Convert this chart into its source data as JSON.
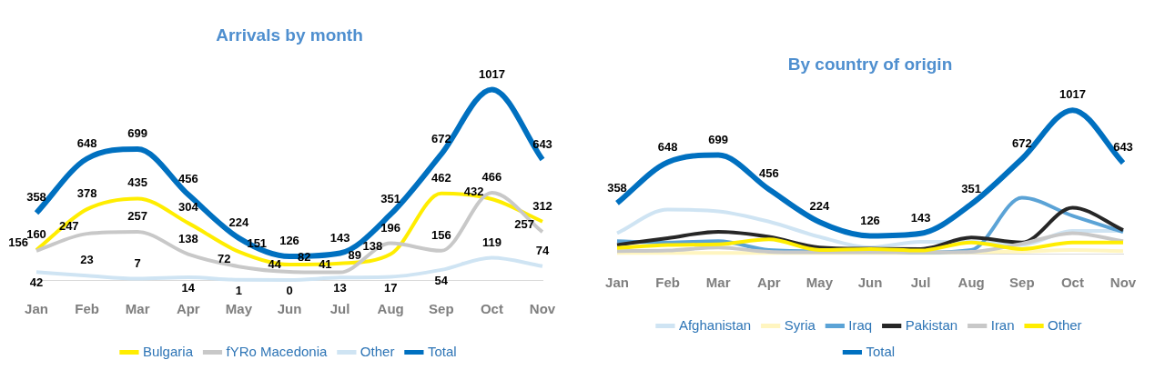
{
  "chart_data": [
    {
      "type": "line",
      "title": "Arrivals by month",
      "categories": [
        "Jan",
        "Feb",
        "Mar",
        "Apr",
        "May",
        "Jun",
        "Jul",
        "Aug",
        "Sep",
        "Oct",
        "Nov"
      ],
      "series": [
        {
          "name": "Bulgaria",
          "color": "#ffed00",
          "values": [
            160,
            378,
            435,
            304,
            151,
            82,
            89,
            138,
            462,
            432,
            312
          ]
        },
        {
          "name": "fYRo Macedonia",
          "color": "#c8c8c8",
          "values": [
            156,
            247,
            257,
            138,
            72,
            44,
            41,
            196,
            156,
            466,
            257
          ]
        },
        {
          "name": "Other",
          "color": "#cfe4f3",
          "values": [
            42,
            23,
            7,
            14,
            1,
            0,
            13,
            17,
            54,
            119,
            74
          ]
        },
        {
          "name": "Total",
          "color": "#0070c0",
          "values": [
            358,
            648,
            699,
            456,
            224,
            126,
            143,
            351,
            672,
            1017,
            643
          ]
        }
      ],
      "data_labels": true,
      "legend": "bottom",
      "grid": false,
      "marker": "none"
    },
    {
      "type": "line",
      "title": "By country of origin",
      "categories": [
        "Jan",
        "Feb",
        "Mar",
        "Apr",
        "May",
        "Jun",
        "Jul",
        "Aug",
        "Sep",
        "Oct",
        "Nov"
      ],
      "series": [
        {
          "name": "Afghanistan",
          "color": "#cfe4f3",
          "values": [
            145,
            312,
            300,
            227,
            119,
            44,
            84,
            84,
            62,
            161,
            161
          ]
        },
        {
          "name": "Syria",
          "color": "#fff5c0",
          "values": [
            5,
            5,
            5,
            5,
            5,
            5,
            5,
            10,
            15,
            25,
            18
          ]
        },
        {
          "name": "Iraq",
          "color": "#5ba3d6",
          "values": [
            88,
            79,
            88,
            26,
            18,
            18,
            9,
            26,
            396,
            268,
            154
          ]
        },
        {
          "name": "Pakistan",
          "color": "#262626",
          "values": [
            62,
            110,
            154,
            119,
            44,
            35,
            33,
            114,
            79,
            326,
            167
          ]
        },
        {
          "name": "Iran",
          "color": "#c8c8c8",
          "values": [
            18,
            22,
            44,
            13,
            9,
            9,
            9,
            13,
            70,
            145,
            88
          ]
        },
        {
          "name": "Other",
          "color": "#ffed00",
          "values": [
            40,
            62,
            66,
            101,
            26,
            33,
            22,
            79,
            33,
            79,
            79
          ]
        },
        {
          "name": "Total",
          "color": "#0070c0",
          "values": [
            358,
            648,
            699,
            456,
            224,
            126,
            143,
            351,
            672,
            1017,
            643
          ],
          "value_labels": [
            "358",
            "648",
            "699",
            "456",
            "224",
            "126",
            "143",
            "351",
            "672",
            "1017",
            "643"
          ]
        }
      ],
      "legend": "bottom",
      "grid": false,
      "marker": "none"
    }
  ]
}
